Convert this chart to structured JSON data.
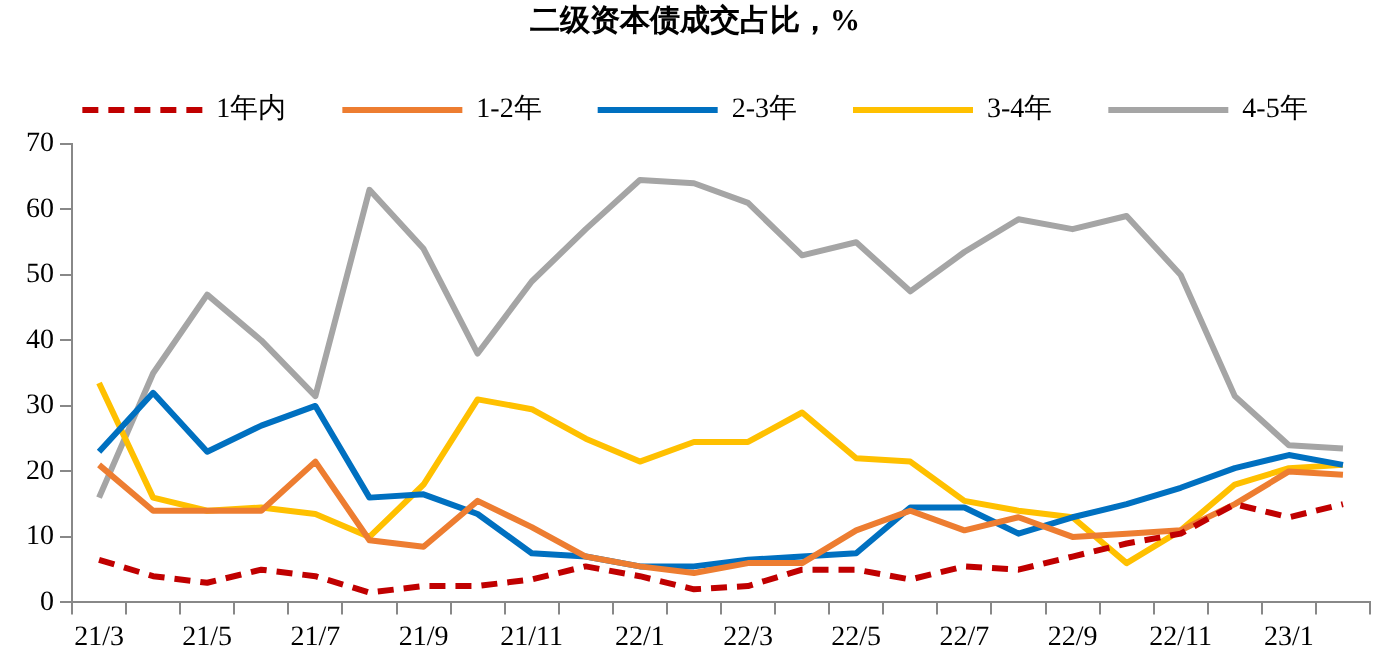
{
  "chart_data": {
    "type": "line",
    "title": "二级资本债成交占比，%",
    "categories": [
      "21/3",
      null,
      "21/5",
      null,
      "21/7",
      null,
      "21/9",
      null,
      "21/11",
      null,
      "22/1",
      null,
      "22/3",
      null,
      "22/5",
      null,
      "22/7",
      null,
      "22/9",
      null,
      "22/11",
      null,
      "23/1",
      null
    ],
    "series": [
      {
        "name": "1年内",
        "color": "#c00000",
        "line_style": "dashed",
        "values": [
          6.5,
          4,
          3,
          5,
          4,
          1.5,
          2.5,
          2.5,
          3.5,
          5.5,
          4,
          2,
          2.5,
          5,
          5,
          3.5,
          5.5,
          5,
          7,
          9,
          10.5,
          15,
          13,
          15
        ]
      },
      {
        "name": "1-2年",
        "color": "#ed7d31",
        "values": [
          21,
          14,
          14,
          14,
          21.5,
          9.5,
          8.5,
          15.5,
          11.5,
          7,
          5.5,
          4.5,
          6,
          6,
          11,
          14,
          11,
          13,
          10,
          10.5,
          11,
          15,
          20,
          19.5
        ]
      },
      {
        "name": "2-3年",
        "color": "#0070c0",
        "values": [
          23,
          32,
          23,
          27,
          30,
          16,
          16.5,
          13.5,
          7.5,
          7,
          5.5,
          5.5,
          6.5,
          7,
          7.5,
          14.5,
          14.5,
          10.5,
          13,
          15,
          17.5,
          20.5,
          22.5,
          21
        ]
      },
      {
        "name": "3-4年",
        "color": "#ffc000",
        "values": [
          33.5,
          16,
          14,
          14.5,
          13.5,
          10,
          18,
          31,
          29.5,
          25,
          21.5,
          24.5,
          24.5,
          29,
          22,
          21.5,
          15.5,
          14,
          13,
          6,
          11,
          18,
          20.5,
          21
        ]
      },
      {
        "name": "4-5年",
        "color": "#a5a5a5",
        "values": [
          16,
          35,
          47,
          40,
          31.5,
          63,
          54,
          38,
          49,
          57,
          64.5,
          64,
          61,
          53,
          55,
          47.5,
          53.5,
          58.5,
          57,
          59,
          50,
          31.5,
          24,
          23.5
        ]
      }
    ],
    "ylim": [
      0,
      70
    ],
    "yticks": [
      0,
      10,
      20,
      30,
      40,
      50,
      60,
      70
    ],
    "grid": false,
    "legend": "top",
    "marker": "none",
    "line_style": "solid"
  }
}
